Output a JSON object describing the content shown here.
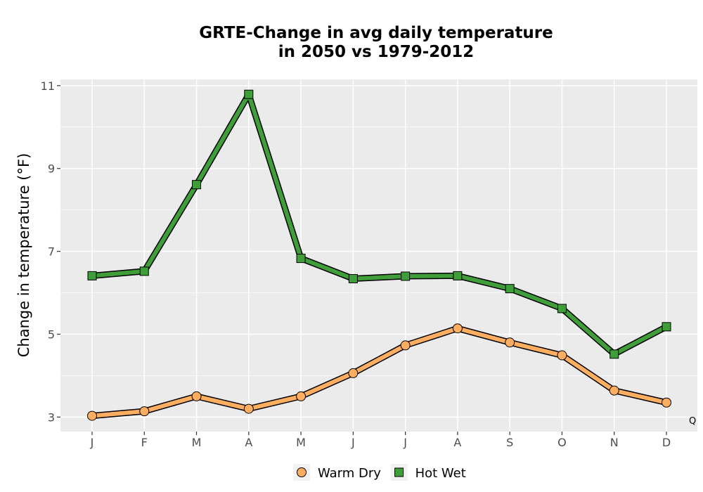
{
  "chart_data": {
    "type": "line",
    "title_line1": "GRTE-Change in avg daily temperature",
    "title_line2": "in 2050 vs 1979-2012",
    "xlabel": "",
    "ylabel": "Change in temperature (°F)",
    "ylim": [
      2.65,
      11.15
    ],
    "yticks": [
      3,
      5,
      7,
      9,
      11
    ],
    "ytick_labels": [
      "3",
      "5",
      "7",
      "9",
      "11"
    ],
    "categories": [
      "J",
      "F",
      "M",
      "A",
      "M",
      "J",
      "J",
      "A",
      "S",
      "O",
      "N",
      "D"
    ],
    "grid": true,
    "legend_position": "bottom",
    "corner_annotation": "Q",
    "series": [
      {
        "name": "Warm Dry",
        "marker": "circle",
        "color": "#fdae61",
        "values": [
          3.03,
          3.14,
          3.5,
          3.2,
          3.5,
          4.06,
          4.73,
          5.14,
          4.8,
          4.49,
          3.64,
          3.35
        ]
      },
      {
        "name": "Hot Wet",
        "marker": "square",
        "color": "#3f9d3a",
        "values": [
          6.41,
          6.52,
          8.61,
          10.79,
          6.83,
          6.34,
          6.4,
          6.41,
          6.1,
          5.62,
          4.52,
          5.18
        ]
      }
    ]
  }
}
